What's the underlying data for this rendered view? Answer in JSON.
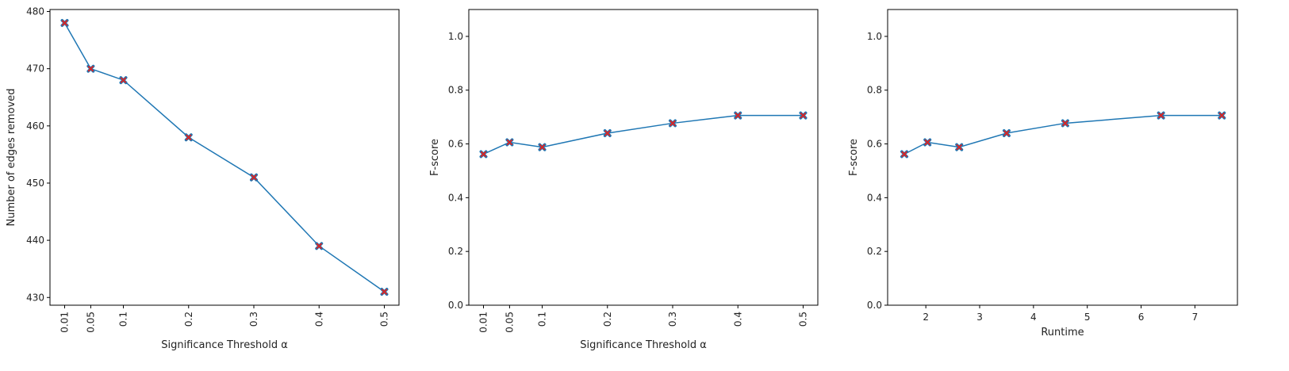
{
  "chart_data": [
    {
      "type": "line",
      "title": "",
      "xlabel": "Significance Threshold α",
      "ylabel": "Number of edges removed",
      "xlim": [
        -0.0125,
        0.5225
      ],
      "ylim": [
        428.65,
        480.35
      ],
      "xticks": [
        0.01,
        0.05,
        0.1,
        0.2,
        0.3,
        0.4,
        0.5
      ],
      "xtick_labels": [
        "0.01",
        "0.05",
        "0.1",
        "0.2",
        "0.3",
        "0.4",
        "0.5"
      ],
      "xtick_rotation": "vertical",
      "yticks": [
        430,
        440,
        450,
        460,
        470,
        480
      ],
      "ytick_labels": [
        "430",
        "440",
        "450",
        "460",
        "470",
        "480"
      ],
      "grid": false,
      "series": [
        {
          "x": [
            0.01,
            0.05,
            0.1,
            0.2,
            0.3,
            0.4,
            0.5
          ],
          "y": [
            478,
            470,
            468,
            458,
            451,
            439,
            431
          ],
          "line_color": "#1f77b4",
          "marker": "X",
          "marker_color": "#d62728"
        }
      ]
    },
    {
      "type": "line",
      "title": "",
      "xlabel": "Significance Threshold α",
      "ylabel": "F-score",
      "xlim": [
        -0.0125,
        0.5225
      ],
      "ylim": [
        0.0,
        1.1
      ],
      "xticks": [
        0.01,
        0.05,
        0.1,
        0.2,
        0.3,
        0.4,
        0.5
      ],
      "xtick_labels": [
        "0.01",
        "0.05",
        "0.1",
        "0.2",
        "0.3",
        "0.4",
        "0.5"
      ],
      "xtick_rotation": "vertical",
      "yticks": [
        0.0,
        0.2,
        0.4,
        0.6,
        0.8,
        1.0
      ],
      "ytick_labels": [
        "0.0",
        "0.2",
        "0.4",
        "0.6",
        "0.8",
        "1.0"
      ],
      "grid": false,
      "series": [
        {
          "x": [
            0.01,
            0.05,
            0.1,
            0.2,
            0.3,
            0.4,
            0.5
          ],
          "y": [
            0.562,
            0.606,
            0.588,
            0.64,
            0.677,
            0.706,
            0.706
          ],
          "line_color": "#1f77b4",
          "marker": "X",
          "marker_color": "#d62728"
        }
      ]
    },
    {
      "type": "line",
      "title": "",
      "xlabel": "Runtime",
      "ylabel": "F-score",
      "xlim": [
        1.29,
        7.79
      ],
      "ylim": [
        0.0,
        1.1
      ],
      "xticks": [
        2,
        3,
        4,
        5,
        6,
        7
      ],
      "xtick_labels": [
        "2",
        "3",
        "4",
        "5",
        "6",
        "7"
      ],
      "xtick_rotation": "horizontal",
      "yticks": [
        0.0,
        0.2,
        0.4,
        0.6,
        0.8,
        1.0
      ],
      "ytick_labels": [
        "0.0",
        "0.2",
        "0.4",
        "0.6",
        "0.8",
        "1.0"
      ],
      "grid": false,
      "series": [
        {
          "x": [
            1.6,
            2.03,
            2.62,
            3.5,
            4.59,
            6.37,
            7.5
          ],
          "y": [
            0.562,
            0.606,
            0.588,
            0.64,
            0.677,
            0.706,
            0.706
          ],
          "line_color": "#1f77b4",
          "marker": "X",
          "marker_color": "#d62728"
        }
      ]
    }
  ]
}
